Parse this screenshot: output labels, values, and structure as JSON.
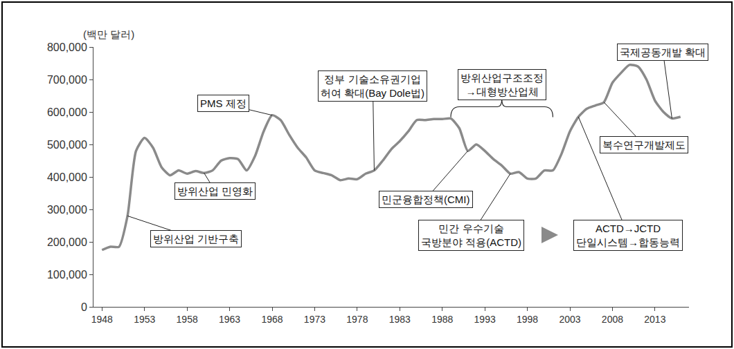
{
  "chart_data": {
    "type": "line",
    "y_label": "(백만 달러)",
    "x": [
      1948,
      1949,
      1950,
      1951,
      1952,
      1953,
      1954,
      1955,
      1956,
      1957,
      1958,
      1959,
      1960,
      1961,
      1962,
      1963,
      1964,
      1965,
      1966,
      1967,
      1968,
      1969,
      1970,
      1971,
      1972,
      1973,
      1974,
      1975,
      1976,
      1977,
      1978,
      1979,
      1980,
      1981,
      1982,
      1983,
      1984,
      1985,
      1986,
      1987,
      1988,
      1989,
      1990,
      1991,
      1992,
      1993,
      1994,
      1995,
      1996,
      1997,
      1998,
      1999,
      2000,
      2001,
      2002,
      2003,
      2004,
      2005,
      2006,
      2007,
      2008,
      2009,
      2010,
      2011,
      2012,
      2013,
      2014,
      2015,
      2016
    ],
    "values": [
      175000,
      185000,
      185000,
      280000,
      480000,
      520000,
      490000,
      430000,
      405000,
      420000,
      410000,
      418000,
      412000,
      420000,
      450000,
      458000,
      455000,
      420000,
      465000,
      540000,
      590000,
      575000,
      530000,
      490000,
      460000,
      420000,
      412000,
      405000,
      390000,
      395000,
      393000,
      410000,
      420000,
      450000,
      485000,
      510000,
      540000,
      575000,
      575000,
      578000,
      578000,
      580000,
      550000,
      480000,
      500000,
      480000,
      455000,
      435000,
      410000,
      415000,
      395000,
      395000,
      420000,
      420000,
      470000,
      540000,
      585000,
      610000,
      620000,
      630000,
      690000,
      720000,
      745000,
      740000,
      700000,
      635000,
      600000,
      580000,
      585000
    ],
    "color": "#8a8a8a",
    "xlim": [
      1947,
      2017
    ],
    "xticks": [
      1948,
      1953,
      1958,
      1963,
      1968,
      1973,
      1978,
      1983,
      1988,
      1993,
      1998,
      2003,
      2008,
      2013
    ],
    "ylim": [
      0,
      800000
    ],
    "yticks": [
      0,
      {
        "value": 100000,
        "label": "100,000"
      },
      {
        "value": 200000,
        "label": "200,000"
      },
      {
        "value": 300000,
        "label": "300,000"
      },
      {
        "value": 400000,
        "label": "400,000"
      },
      {
        "value": 500000,
        "label": "500,000"
      },
      {
        "value": 600000,
        "label": "600,000"
      },
      {
        "value": 700000,
        "label": "700,000"
      },
      {
        "value": 800000,
        "label": "800,000"
      }
    ],
    "grid": false,
    "annotations": [
      {
        "text": "방위산업 기반구축",
        "x": 1951
      },
      {
        "text": "방위산업 민영화",
        "x": 1960
      },
      {
        "text": "PMS 제정",
        "x": 1968
      },
      {
        "text": "정부 기술소유권기업\n허여 확대(Bay Dole법)",
        "x": 1980
      },
      {
        "text": "민군융합정책(CMI)",
        "x": 1991
      },
      {
        "text": "방위산업구조조정\n→대형방산업체",
        "x": [
          1989,
          2001
        ]
      },
      {
        "text": "민간 우수기술\n국방분야 적용(ACTD)",
        "x": 1996
      },
      {
        "text": "ACTD→JCTD\n단일시스템→합동능력",
        "x": 2004
      },
      {
        "text": "복수연구개발제도",
        "x": 2007
      },
      {
        "text": "국제공동개발 확대",
        "x": 2015
      }
    ]
  }
}
